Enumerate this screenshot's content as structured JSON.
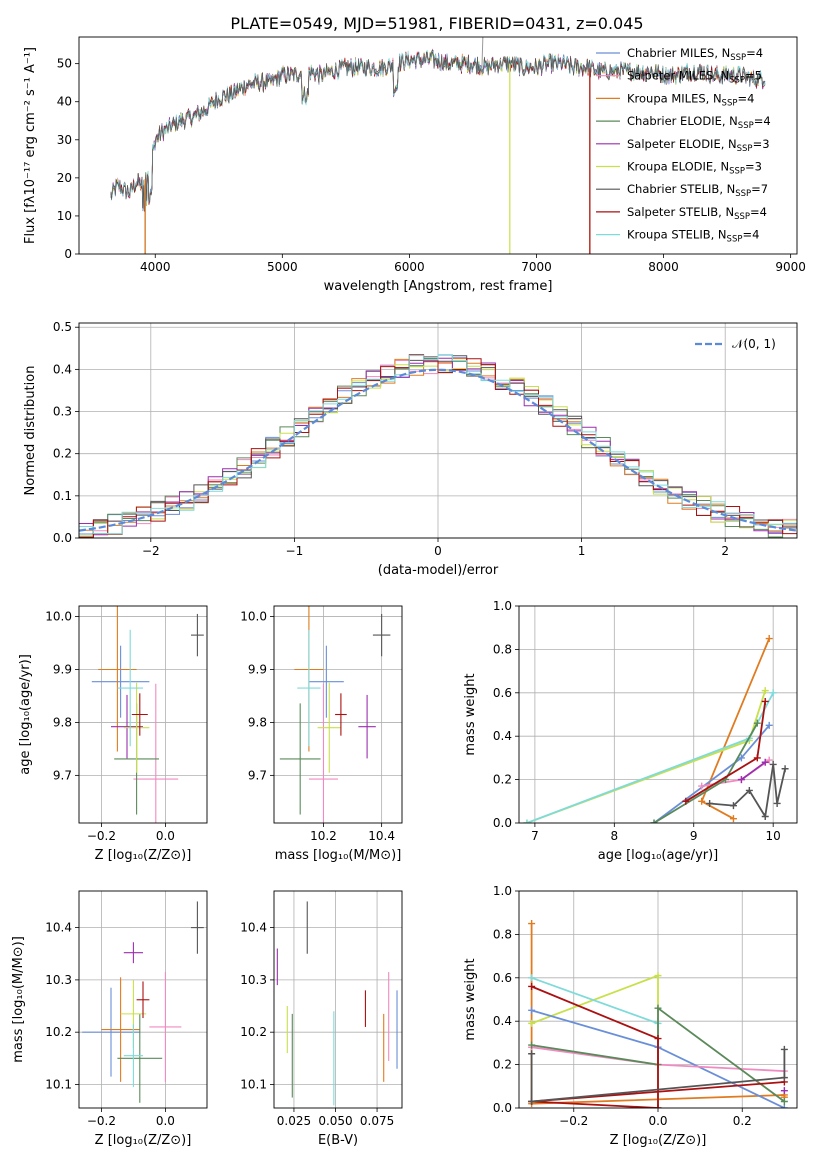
{
  "figure": {
    "title": "PLATE=0549, MJD=51981, FIBERID=0431, z=0.045"
  },
  "colors": {
    "chabrier_miles": "#6a8fd8",
    "salpeter_miles": "#f08ac0",
    "kroupa_miles": "#e07b20",
    "chabrier_elodie": "#5a8a5a",
    "salpeter_elodie": "#9b2fae",
    "kroupa_elodie": "#c8e04a",
    "chabrier_stelib": "#555555",
    "salpeter_stelib": "#aa1111",
    "kroupa_stelib": "#7fdada",
    "normal": "#5b8bd8"
  },
  "models": [
    {
      "key": "chabrier_miles",
      "label": "Chabrier MILES, N",
      "sub": "SSP",
      "suffix": "=4"
    },
    {
      "key": "salpeter_miles",
      "label": "Salpeter MILES, N",
      "sub": "SSP",
      "suffix": "=5"
    },
    {
      "key": "kroupa_miles",
      "label": "Kroupa MILES, N",
      "sub": "SSP",
      "suffix": "=4"
    },
    {
      "key": "chabrier_elodie",
      "label": "Chabrier ELODIE, N",
      "sub": "SSP",
      "suffix": "=4"
    },
    {
      "key": "salpeter_elodie",
      "label": "Salpeter ELODIE, N",
      "sub": "SSP",
      "suffix": "=3"
    },
    {
      "key": "kroupa_elodie",
      "label": "Kroupa ELODIE, N",
      "sub": "SSP",
      "suffix": "=3"
    },
    {
      "key": "chabrier_stelib",
      "label": "Chabrier STELIB, N",
      "sub": "SSP",
      "suffix": "=7"
    },
    {
      "key": "salpeter_stelib",
      "label": "Salpeter STELIB, N",
      "sub": "SSP",
      "suffix": "=4"
    },
    {
      "key": "kroupa_stelib",
      "label": "Kroupa STELIB, N",
      "sub": "SSP",
      "suffix": "=4"
    }
  ],
  "chart_data": [
    {
      "id": "spectrum",
      "type": "line",
      "xlabel": "wavelength [Angstrom, rest frame]",
      "ylabel": "Flux [fλ10⁻¹⁷ erg cm⁻² s⁻¹ A⁻¹]",
      "xlim": [
        3400,
        9050
      ],
      "ylim": [
        0,
        57
      ],
      "xticks": [
        4000,
        5000,
        6000,
        7000,
        8000,
        9000
      ],
      "yticks": [
        0,
        10,
        20,
        30,
        40,
        50
      ],
      "continuum": {
        "x": [
          3650,
          3700,
          3750,
          3800,
          3850,
          3900,
          3950,
          4000,
          4050,
          4100,
          4200,
          4300,
          4400,
          4500,
          4600,
          4700,
          4800,
          4900,
          5000,
          5100,
          5200,
          5300,
          5400,
          5500,
          5600,
          5700,
          5800,
          5900,
          6000,
          6100,
          6200,
          6300,
          6400,
          6500,
          6600,
          6700,
          6800,
          6900,
          7000,
          7100,
          7200,
          7300,
          7400,
          7500,
          7600,
          7700,
          7800,
          7900,
          8000,
          8100,
          8200,
          8300,
          8400,
          8500,
          8600,
          8700,
          8800
        ],
        "y": [
          15,
          18,
          17,
          16,
          19,
          18,
          22,
          30,
          32,
          33,
          35,
          36,
          38,
          41,
          42,
          44,
          45,
          45,
          47,
          47,
          48,
          47,
          48,
          49,
          49,
          49,
          49,
          50,
          51,
          51,
          51,
          50,
          50,
          50,
          49,
          50,
          50,
          49,
          49,
          50,
          50,
          49,
          49,
          48,
          48,
          48,
          48,
          48,
          47,
          47,
          48,
          48,
          47,
          47,
          47,
          46,
          46
        ]
      },
      "dropouts": [
        {
          "model": "chabrier_stelib",
          "x": 3920
        },
        {
          "model": "kroupa_miles",
          "x": 3920
        },
        {
          "model": "kroupa_elodie",
          "x": 6790
        },
        {
          "model": "kroupa_miles",
          "x": 7420
        },
        {
          "model": "salpeter_stelib",
          "x": 7420
        }
      ],
      "spike": {
        "x": 6570,
        "y": 57
      }
    },
    {
      "id": "residuals",
      "type": "histogram",
      "xlabel": "(data-model)/error",
      "ylabel": "Normed distribution",
      "xlim": [
        -2.5,
        2.5
      ],
      "ylim": [
        0,
        0.51
      ],
      "xticks": [
        -2,
        -1,
        0,
        1,
        2
      ],
      "yticks": [
        0.0,
        0.1,
        0.2,
        0.3,
        0.4,
        0.5
      ],
      "legend": {
        "label": "𝒩(0, 1)",
        "position": "top-right"
      },
      "bin_width": 0.1,
      "bin_start": -2.5
    },
    {
      "id": "age_vs_Z",
      "type": "errorbar",
      "xlabel": "Z [log₁₀(Z/Z⊙)]",
      "ylabel": "age  [log₁₀(age/yr)]",
      "xlim": [
        -0.27,
        0.13
      ],
      "ylim": [
        9.61,
        10.02
      ],
      "xticks": [
        -0.2,
        0.0
      ],
      "yticks": [
        9.7,
        9.8,
        9.9,
        10.0
      ],
      "points": [
        {
          "model": "chabrier_miles",
          "x": -0.14,
          "y": 9.877,
          "xerr": 0.09,
          "yerr": 0.068
        },
        {
          "model": "salpeter_miles",
          "x": -0.03,
          "y": 9.693,
          "xerr": 0.07,
          "yerr": 0.18
        },
        {
          "model": "kroupa_miles",
          "x": -0.15,
          "y": 9.9,
          "xerr": 0.06,
          "yerr": 0.155
        },
        {
          "model": "chabrier_elodie",
          "x": -0.09,
          "y": 9.731,
          "xerr": 0.07,
          "yerr": 0.105
        },
        {
          "model": "salpeter_elodie",
          "x": -0.12,
          "y": 9.792,
          "xerr": 0.05,
          "yerr": 0.06
        },
        {
          "model": "kroupa_elodie",
          "x": -0.09,
          "y": 9.79,
          "xerr": 0.04,
          "yerr": 0.085
        },
        {
          "model": "chabrier_stelib",
          "x": 0.1,
          "y": 9.965,
          "xerr": 0.02,
          "yerr": 0.04
        },
        {
          "model": "salpeter_stelib",
          "x": -0.08,
          "y": 9.815,
          "xerr": 0.025,
          "yerr": 0.04
        },
        {
          "model": "kroupa_stelib",
          "x": -0.11,
          "y": 9.865,
          "xerr": 0.04,
          "yerr": 0.11
        }
      ]
    },
    {
      "id": "age_vs_mass",
      "type": "errorbar",
      "xlabel": "mass [log₁₀(M/M⊙)]",
      "ylabel": "",
      "xlim": [
        10.03,
        10.47
      ],
      "ylim": [
        9.61,
        10.02
      ],
      "xticks": [
        10.2,
        10.4
      ],
      "yticks": [
        9.7,
        9.8,
        9.9,
        10.0
      ],
      "points": [
        {
          "model": "chabrier_miles",
          "x": 10.21,
          "y": 9.877,
          "xerr": 0.06,
          "yerr": 0.068
        },
        {
          "model": "salpeter_miles",
          "x": 10.2,
          "y": 9.693,
          "xerr": 0.05,
          "yerr": 0.18
        },
        {
          "model": "kroupa_miles",
          "x": 10.15,
          "y": 9.9,
          "xerr": 0.05,
          "yerr": 0.155
        },
        {
          "model": "chabrier_elodie",
          "x": 10.12,
          "y": 9.731,
          "xerr": 0.07,
          "yerr": 0.105
        },
        {
          "model": "salpeter_elodie",
          "x": 10.35,
          "y": 9.792,
          "xerr": 0.03,
          "yerr": 0.06
        },
        {
          "model": "kroupa_elodie",
          "x": 10.22,
          "y": 9.79,
          "xerr": 0.04,
          "yerr": 0.085
        },
        {
          "model": "chabrier_stelib",
          "x": 10.4,
          "y": 9.965,
          "xerr": 0.03,
          "yerr": 0.04
        },
        {
          "model": "salpeter_stelib",
          "x": 10.26,
          "y": 9.815,
          "xerr": 0.02,
          "yerr": 0.04
        },
        {
          "model": "kroupa_stelib",
          "x": 10.15,
          "y": 9.865,
          "xerr": 0.04,
          "yerr": 0.11
        }
      ]
    },
    {
      "id": "weight_vs_age",
      "type": "line",
      "xlabel": "age  [log₁₀(age/yr)]",
      "ylabel": "mass weight",
      "xlim": [
        6.8,
        10.3
      ],
      "ylim": [
        0,
        1.0
      ],
      "xticks": [
        7,
        8,
        9,
        10
      ],
      "yticks": [
        0.0,
        0.2,
        0.4,
        0.6,
        0.8,
        1.0
      ],
      "series": [
        {
          "model": "kroupa_miles",
          "x": [
            9.5,
            9.1,
            9.95
          ],
          "y": [
            0.02,
            0.1,
            0.85
          ]
        },
        {
          "model": "kroupa_elodie",
          "x": [
            6.9,
            9.7,
            9.9
          ],
          "y": [
            0.0,
            0.38,
            0.61
          ]
        },
        {
          "model": "kroupa_stelib",
          "x": [
            6.9,
            9.7,
            10.0
          ],
          "y": [
            0.0,
            0.39,
            0.6
          ]
        },
        {
          "model": "chabrier_miles",
          "x": [
            8.5,
            9.6,
            9.95
          ],
          "y": [
            0.0,
            0.3,
            0.45
          ]
        },
        {
          "model": "salpeter_miles",
          "x": [
            9.1,
            9.6,
            9.95
          ],
          "y": [
            0.17,
            0.2,
            0.29
          ]
        },
        {
          "model": "chabrier_elodie",
          "x": [
            8.5,
            9.4,
            9.8
          ],
          "y": [
            0.0,
            0.2,
            0.46
          ]
        },
        {
          "model": "salpeter_elodie",
          "x": [
            9.6,
            9.9
          ],
          "y": [
            0.2,
            0.28
          ]
        },
        {
          "model": "salpeter_stelib",
          "x": [
            8.9,
            9.8,
            9.9
          ],
          "y": [
            0.1,
            0.3,
            0.56
          ]
        },
        {
          "model": "chabrier_stelib",
          "x": [
            9.2,
            9.5,
            9.7,
            9.9,
            10.0,
            10.05,
            10.15
          ],
          "y": [
            0.09,
            0.08,
            0.15,
            0.03,
            0.27,
            0.09,
            0.25
          ]
        }
      ]
    },
    {
      "id": "mass_vs_Z",
      "type": "errorbar",
      "xlabel": "Z [log₁₀(Z/Z⊙)]",
      "ylabel": "mass [log₁₀(M/M⊙)]",
      "xlim": [
        -0.27,
        0.13
      ],
      "ylim": [
        10.055,
        10.47
      ],
      "xticks": [
        -0.2,
        0.0
      ],
      "yticks": [
        10.1,
        10.2,
        10.3,
        10.4
      ],
      "points": [
        {
          "model": "chabrier_miles",
          "x": -0.17,
          "y": 10.2,
          "xerr": 0.09,
          "yerr": 0.085
        },
        {
          "model": "salpeter_miles",
          "x": 0.0,
          "y": 10.21,
          "xerr": 0.05,
          "yerr": 0.105
        },
        {
          "model": "kroupa_miles",
          "x": -0.14,
          "y": 10.205,
          "xerr": 0.06,
          "yerr": 0.1
        },
        {
          "model": "chabrier_elodie",
          "x": -0.08,
          "y": 10.15,
          "xerr": 0.07,
          "yerr": 0.085
        },
        {
          "model": "salpeter_elodie",
          "x": -0.1,
          "y": 10.352,
          "xerr": 0.03,
          "yerr": 0.02
        },
        {
          "model": "kroupa_elodie",
          "x": -0.1,
          "y": 10.235,
          "xerr": 0.04,
          "yerr": 0.065
        },
        {
          "model": "chabrier_stelib",
          "x": 0.1,
          "y": 10.4,
          "xerr": 0.02,
          "yerr": 0.05
        },
        {
          "model": "salpeter_stelib",
          "x": -0.07,
          "y": 10.262,
          "xerr": 0.02,
          "yerr": 0.035
        },
        {
          "model": "kroupa_stelib",
          "x": -0.1,
          "y": 10.155,
          "xerr": 0.03,
          "yerr": 0.06
        }
      ]
    },
    {
      "id": "mass_vs_ebv",
      "type": "errorbar",
      "xlabel": "E(B-V)",
      "ylabel": "",
      "xlim": [
        0.013,
        0.09
      ],
      "ylim": [
        10.055,
        10.47
      ],
      "xticks": [
        0.025,
        0.05,
        0.075
      ],
      "xticklabels": [
        "0.025",
        "0.050",
        "0.075"
      ],
      "yticks": [
        10.1,
        10.2,
        10.3,
        10.4
      ],
      "points": [
        {
          "model": "chabrier_miles",
          "x": 0.087,
          "y": 10.205,
          "xerr": 0,
          "yerr": 0.075
        },
        {
          "model": "salpeter_miles",
          "x": 0.082,
          "y": 10.23,
          "xerr": 0,
          "yerr": 0.085
        },
        {
          "model": "kroupa_miles",
          "x": 0.079,
          "y": 10.17,
          "xerr": 0,
          "yerr": 0.065
        },
        {
          "model": "chabrier_elodie",
          "x": 0.024,
          "y": 10.155,
          "xerr": 0,
          "yerr": 0.08
        },
        {
          "model": "salpeter_elodie",
          "x": 0.015,
          "y": 10.325,
          "xerr": 0,
          "yerr": 0.035
        },
        {
          "model": "kroupa_elodie",
          "x": 0.021,
          "y": 10.205,
          "xerr": 0,
          "yerr": 0.045
        },
        {
          "model": "chabrier_stelib",
          "x": 0.033,
          "y": 10.4,
          "xerr": 0,
          "yerr": 0.05
        },
        {
          "model": "salpeter_stelib",
          "x": 0.068,
          "y": 10.245,
          "xerr": 0,
          "yerr": 0.035
        },
        {
          "model": "kroupa_stelib",
          "x": 0.049,
          "y": 10.15,
          "xerr": 0,
          "yerr": 0.09
        }
      ]
    },
    {
      "id": "weight_vs_Z",
      "type": "line",
      "xlabel": "Z [log₁₀(Z/Z⊙)]",
      "ylabel": "mass weight",
      "xlim": [
        -0.33,
        0.33
      ],
      "ylim": [
        0,
        1.0
      ],
      "xticks": [
        -0.2,
        0.0,
        0.2
      ],
      "yticks": [
        0.0,
        0.2,
        0.4,
        0.6,
        0.8,
        1.0
      ],
      "series": [
        {
          "model": "kroupa_miles",
          "x": [
            -0.3,
            -0.3,
            0.3,
            0.3
          ],
          "y": [
            0.85,
            0.02,
            0.06,
            0.05
          ]
        },
        {
          "model": "kroupa_elodie",
          "x": [
            -0.3,
            0.0,
            0.0
          ],
          "y": [
            0.39,
            0.61,
            0.0
          ]
        },
        {
          "model": "kroupa_stelib",
          "x": [
            -0.3,
            0.0,
            0.0
          ],
          "y": [
            0.6,
            0.39,
            0.0
          ]
        },
        {
          "model": "chabrier_miles",
          "x": [
            -0.3,
            0.0,
            0.3
          ],
          "y": [
            0.45,
            0.28,
            0.0
          ]
        },
        {
          "model": "salpeter_miles",
          "x": [
            -0.3,
            0.0,
            0.3
          ],
          "y": [
            0.28,
            0.2,
            0.17
          ]
        },
        {
          "model": "chabrier_elodie",
          "x": [
            -0.3,
            0.0,
            0.0,
            0.3
          ],
          "y": [
            0.29,
            0.2,
            0.46,
            0.03
          ]
        },
        {
          "model": "salpeter_stelib",
          "x": [
            -0.3,
            0.0,
            0.0,
            -0.3,
            0.3
          ],
          "y": [
            0.56,
            0.32,
            0.0,
            0.03,
            0.12
          ]
        },
        {
          "model": "chabrier_stelib",
          "x": [
            -0.3,
            -0.3,
            0.3,
            0.3
          ],
          "y": [
            0.25,
            0.03,
            0.14,
            0.27
          ]
        },
        {
          "model": "salpeter_elodie",
          "x": [
            0.3
          ],
          "y": [
            0.08
          ]
        }
      ]
    }
  ]
}
